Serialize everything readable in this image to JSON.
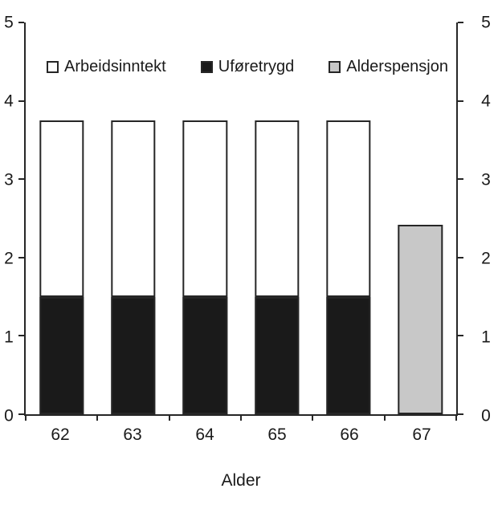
{
  "chart_data": {
    "type": "bar",
    "stacked": true,
    "title": "",
    "xlabel": "Alder",
    "ylabel": "",
    "categories": [
      "62",
      "63",
      "64",
      "65",
      "66",
      "67"
    ],
    "series": [
      {
        "name": "Uføretrygd",
        "color": "#1a1a1a",
        "values": [
          1.5,
          1.5,
          1.5,
          1.5,
          1.5,
          0
        ]
      },
      {
        "name": "Arbeidsinntekt",
        "color": "#ffffff",
        "values": [
          2.25,
          2.25,
          2.25,
          2.25,
          2.25,
          0
        ]
      },
      {
        "name": "Alderspensjon",
        "color": "#c8c8c8",
        "values": [
          0,
          0,
          0,
          0,
          0,
          2.42
        ]
      }
    ],
    "legend": [
      {
        "label": "Arbeidsinntekt",
        "color": "#ffffff"
      },
      {
        "label": "Uføretrygd",
        "color": "#1a1a1a"
      },
      {
        "label": "Alderspensjon",
        "color": "#c8c8c8"
      }
    ],
    "legend_position": "top-inside",
    "ylim": [
      0,
      5
    ],
    "yticks": [
      0,
      1,
      2,
      3,
      4,
      5
    ],
    "dual_y_axis": true,
    "grid": false,
    "axis_color": "#262626",
    "background_color": "#ffffff"
  }
}
